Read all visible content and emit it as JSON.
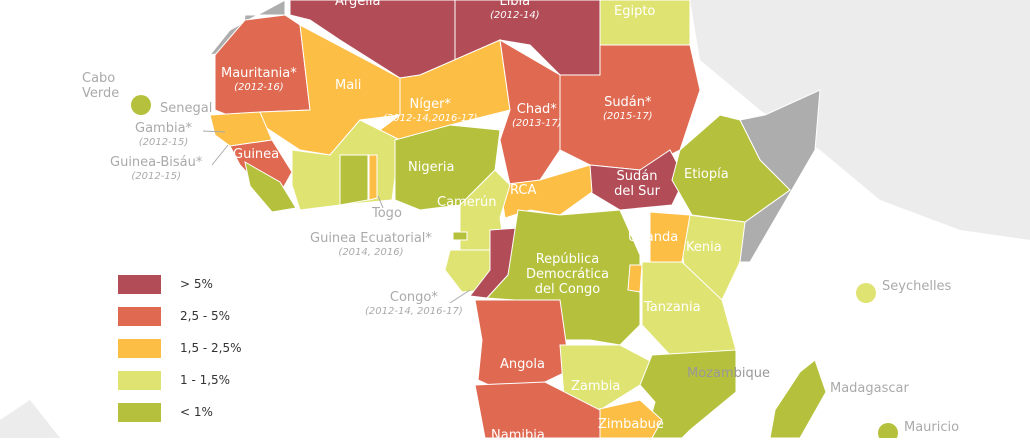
{
  "legend": [
    {
      "label": "> 5%",
      "color": "#b24c57"
    },
    {
      "label": "2,5 - 5%",
      "color": "#df6a51"
    },
    {
      "label": "1,5 - 2,5%",
      "color": "#fdbe46"
    },
    {
      "label": "1 - 1,5%",
      "color": "#dfe372"
    },
    {
      "label": "< 1%",
      "color": "#b5c13c"
    }
  ],
  "colors": {
    "no_data": "#adadad",
    "other_land": "#ececec",
    "ocean": "#ffffff"
  },
  "countries": {
    "argelia": {
      "name": "Argelia"
    },
    "libia": {
      "name": "Libia",
      "years": "(2012-14)"
    },
    "egipto": {
      "name": "Egipto"
    },
    "mauritania": {
      "name": "Mauritania*",
      "years": "(2012-16)"
    },
    "mali": {
      "name": "Mali"
    },
    "niger": {
      "name": "Níger*",
      "years": "(2012-14,2016-17)"
    },
    "chad": {
      "name": "Chad*",
      "years": "(2013-17)"
    },
    "sudan": {
      "name": "Sudán*",
      "years": "(2015-17)"
    },
    "cabo_verde": {
      "name": "Cabo Verde"
    },
    "senegal": {
      "name": "Senegal"
    },
    "gambia": {
      "name": "Gambia*",
      "years": "(2012-15)"
    },
    "guinea_bisau": {
      "name": "Guinea-Bisáu*",
      "years": "(2012-15)"
    },
    "guinea": {
      "name": "Guinea"
    },
    "nigeria": {
      "name": "Nigeria"
    },
    "togo": {
      "name": "Togo"
    },
    "camerun": {
      "name": "Camerún"
    },
    "rca": {
      "name": "RCA"
    },
    "sudan_sur": {
      "name": "Sudán del Sur"
    },
    "etiopia": {
      "name": "Etiopía"
    },
    "guinea_ecuatorial": {
      "name": "Guinea Ecuatorial*",
      "years": "(2014, 2016)"
    },
    "uganda": {
      "name": "Uganda"
    },
    "kenia": {
      "name": "Kenia"
    },
    "rdc": {
      "name": "República Democrática del Congo"
    },
    "congo": {
      "name": "Congo*",
      "years": "(2012-14, 2016-17)"
    },
    "seychelles": {
      "name": "Seychelles"
    },
    "tanzania": {
      "name": "Tanzania"
    },
    "angola": {
      "name": "Angola"
    },
    "zambia": {
      "name": "Zambia"
    },
    "mozambique": {
      "name": "Mozambique"
    },
    "madagascar": {
      "name": "Madagascar"
    },
    "zimbabue": {
      "name": "Zimbabue"
    },
    "namibia": {
      "name": "Namibia"
    },
    "mauricio": {
      "name": "Mauricio"
    }
  }
}
